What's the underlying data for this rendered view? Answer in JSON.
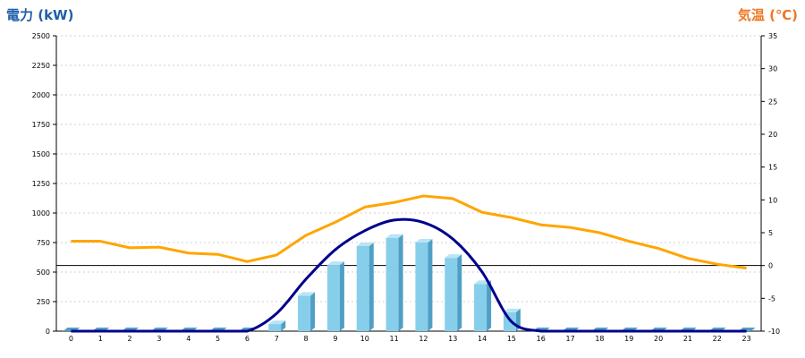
{
  "chart_data": {
    "type": "bar+line",
    "left_axis_label": "電力 (kW)",
    "right_axis_label": "気温 (℃)",
    "categories": [
      "0",
      "1",
      "2",
      "3",
      "4",
      "5",
      "6",
      "7",
      "8",
      "9",
      "10",
      "11",
      "12",
      "13",
      "14",
      "15",
      "16",
      "17",
      "18",
      "19",
      "20",
      "21",
      "22",
      "23"
    ],
    "y_left": {
      "min": 0,
      "max": 2500,
      "ticks": [
        "0",
        "250",
        "500",
        "750",
        "1000",
        "1250",
        "1500",
        "1750",
        "2000",
        "2250",
        "2500"
      ]
    },
    "y_right": {
      "min": -10,
      "max": 35,
      "ticks": [
        "-10",
        "-5",
        "0",
        "5",
        "10",
        "15",
        "20",
        "25",
        "30",
        "35"
      ]
    },
    "grid": true,
    "series": [
      {
        "kind": "bar",
        "axis": "left",
        "color": "#87ceeb",
        "values": [
          0,
          0,
          0,
          0,
          0,
          0,
          0,
          60,
          300,
          560,
          720,
          790,
          750,
          620,
          400,
          160,
          0,
          0,
          0,
          0,
          0,
          0,
          0,
          0
        ]
      },
      {
        "kind": "line",
        "axis": "left",
        "color": "#00008b",
        "smooth": true,
        "values": [
          0,
          0,
          0,
          0,
          0,
          0,
          0,
          150,
          440,
          690,
          850,
          940,
          920,
          780,
          500,
          80,
          0,
          0,
          0,
          0,
          0,
          0,
          0,
          0
        ]
      },
      {
        "kind": "line",
        "axis": "right",
        "color": "#ffa500",
        "values": [
          3.7,
          3.7,
          2.7,
          2.8,
          1.9,
          1.7,
          0.6,
          1.6,
          4.6,
          6.6,
          8.9,
          9.6,
          10.6,
          10.2,
          8.1,
          7.3,
          6.2,
          5.8,
          5.0,
          3.7,
          2.6,
          1.1,
          0.2,
          -0.4
        ]
      }
    ],
    "colors": {
      "left_title": "#1f5fa8",
      "right_title": "#ee7722",
      "zero_line": "#000000",
      "grid": "#cfcfcf"
    }
  }
}
